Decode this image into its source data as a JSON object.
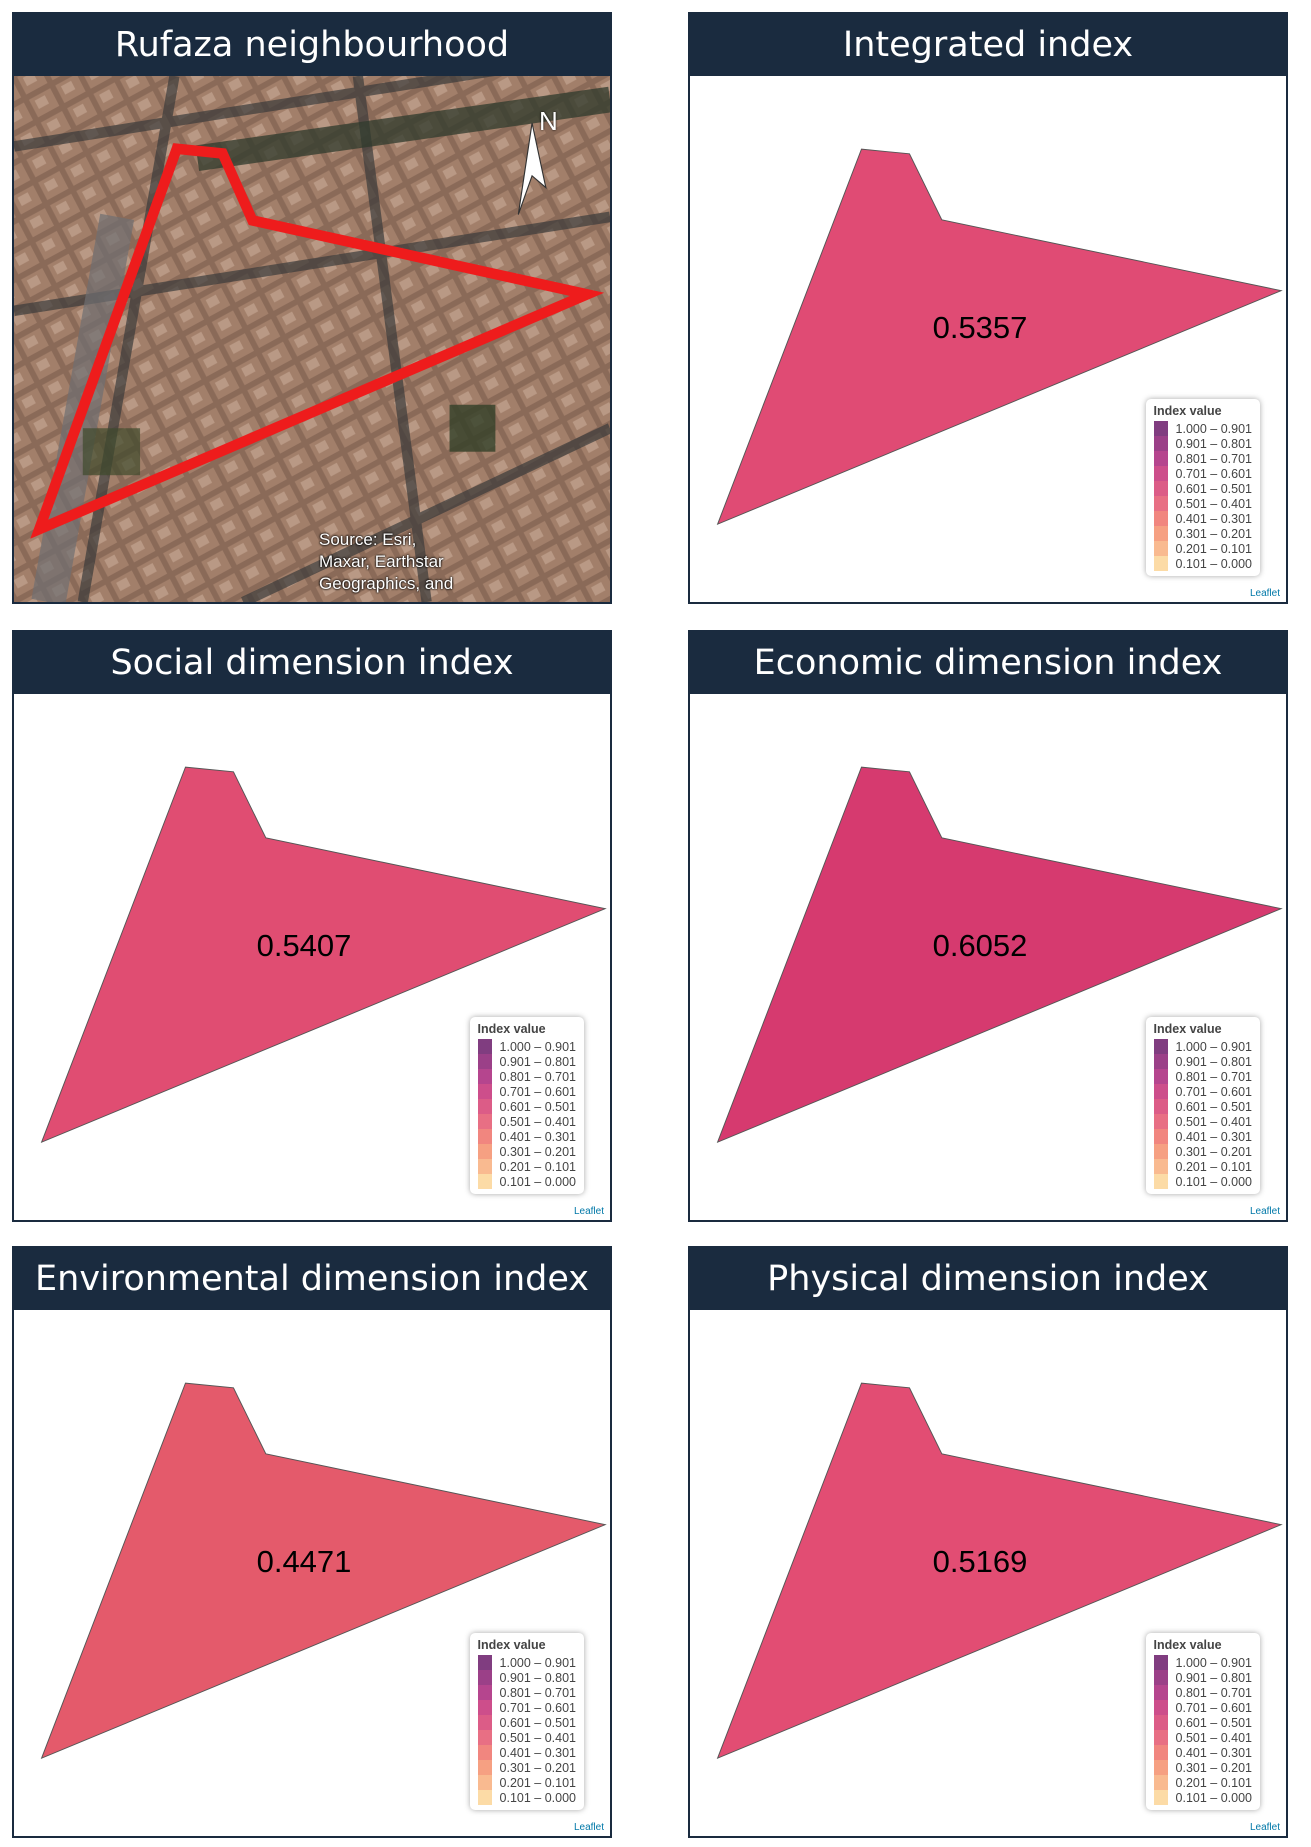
{
  "panels": [
    {
      "title": "Rufaza neighbourhood",
      "north": "N",
      "source_lines": [
        "Source: Esri,",
        "Maxar, Earthstar",
        "Geographics, and"
      ]
    },
    {
      "title": "Integrated index",
      "value": "0.5357",
      "fill": "#e04b74"
    },
    {
      "title": "Social dimension index",
      "value": "0.5407",
      "fill": "#e04d72"
    },
    {
      "title": "Economic dimension index",
      "value": "0.6052",
      "fill": "#d63a6f"
    },
    {
      "title": "Environmental dimension index",
      "value": "0.4471",
      "fill": "#e45a6b"
    },
    {
      "title": "Physical dimension index",
      "value": "0.5169",
      "fill": "#e24d73"
    }
  ],
  "legend": {
    "title": "Index value",
    "items": [
      {
        "label": "1.000 – 0.901",
        "color": "#6a1b6a"
      },
      {
        "label": "0.901 – 0.801",
        "color": "#8a1f73"
      },
      {
        "label": "0.801 – 0.701",
        "color": "#a8257a"
      },
      {
        "label": "0.701 – 0.601",
        "color": "#c42f77"
      },
      {
        "label": "0.601 – 0.501",
        "color": "#d63f72"
      },
      {
        "label": "0.501 – 0.401",
        "color": "#e4566e"
      },
      {
        "label": "0.401 – 0.301",
        "color": "#ee7168"
      },
      {
        "label": "0.301 – 0.201",
        "color": "#f48f6c"
      },
      {
        "label": "0.201 – 0.101",
        "color": "#f8ae7c"
      },
      {
        "label": "0.101 – 0.000",
        "color": "#fbd597"
      }
    ]
  },
  "attribution": "Leaflet"
}
